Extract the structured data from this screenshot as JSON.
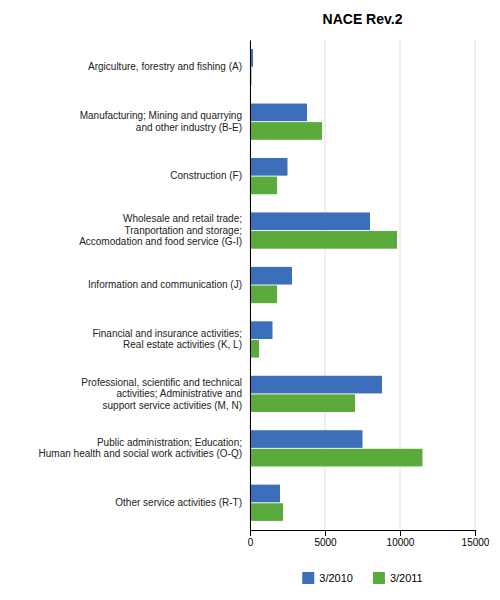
{
  "chart_data": {
    "type": "bar",
    "orientation": "horizontal",
    "title": "NACE Rev.2",
    "categories": [
      "Argiculture, forestry and fishing (A)",
      "Manufacturing; Mining and quarrying\nand other industry (B-E)",
      "Construction (F)",
      "Wholesale and retail trade;\nTranportation and storage;\nAccomodation and food service (G-I)",
      "Information and communication (J)",
      "Financial and insurance activities;\nReal estate activities (K, L)",
      "Professional, scientific and technical\nactivities; Administrative and\nsupport service activities (M, N)",
      "Public administration; Education;\nHuman health and social work activities (O-Q)",
      "Other service activities (R-T)"
    ],
    "series": [
      {
        "name": "3/2010",
        "color": "#3b6fba",
        "values": [
          200,
          3800,
          2500,
          8000,
          2800,
          1500,
          8800,
          7500,
          2000
        ]
      },
      {
        "name": "3/2011",
        "color": "#5aaa3c",
        "values": [
          100,
          4800,
          1800,
          9800,
          1800,
          600,
          7000,
          11500,
          2200
        ]
      }
    ],
    "xlim": [
      0,
      15000
    ],
    "xticks": [
      0,
      5000,
      10000,
      15000
    ],
    "grid": true,
    "legend": "bottom"
  }
}
